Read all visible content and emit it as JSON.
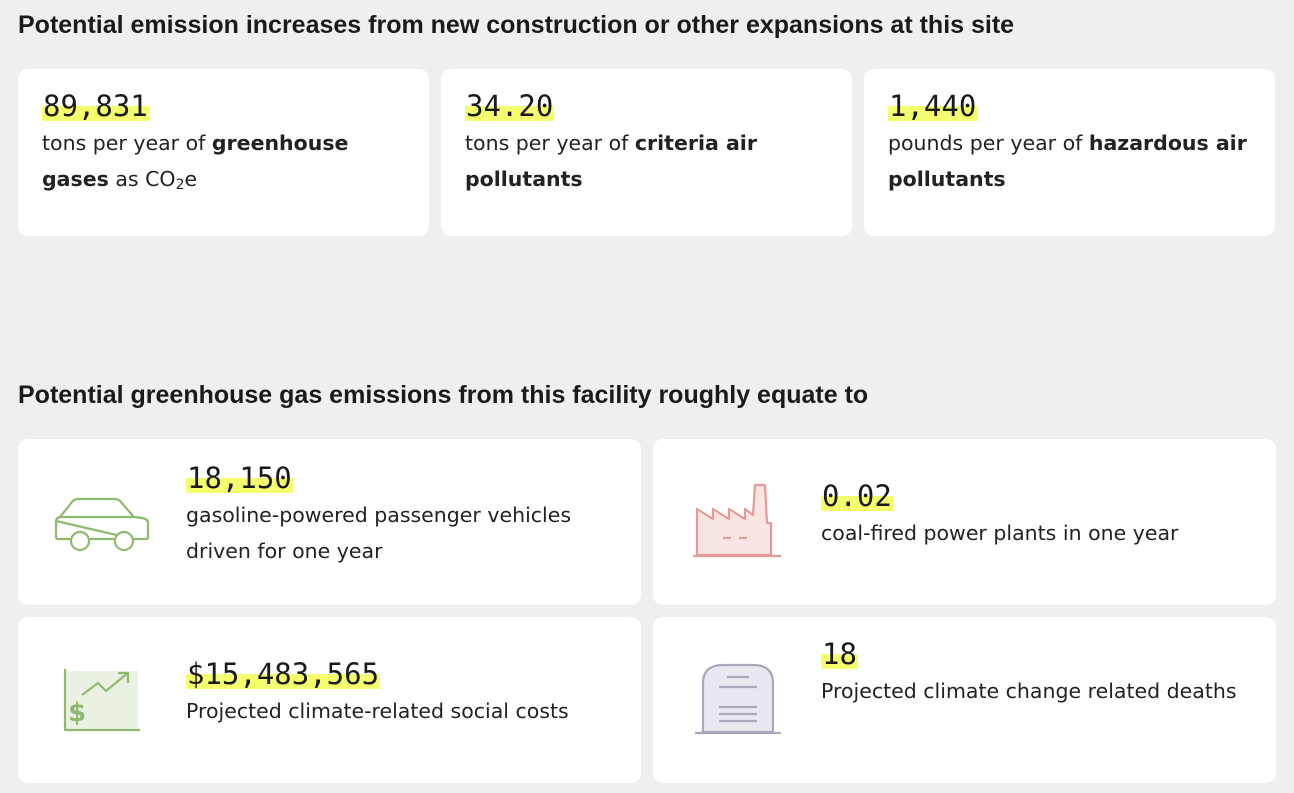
{
  "section1": {
    "title": "Potential emission increases from new construction or other expansions at this site",
    "cards": [
      {
        "value": "89,831",
        "pre": "tons per year of ",
        "bold": "greenhouse gases",
        "post_a": " as CO",
        "sub": "2",
        "post_b": "e"
      },
      {
        "value": "34.20",
        "pre": "tons per year of ",
        "bold": "criteria air pollutants"
      },
      {
        "value": "1,440",
        "pre": "pounds per year of ",
        "bold": "hazardous air pollutants"
      }
    ]
  },
  "section2": {
    "title": "Potential greenhouse gas emissions from this facility roughly equate to",
    "cards": [
      {
        "icon": "car-icon",
        "value": "18,150",
        "text": "gasoline-powered passenger vehicles driven for one year"
      },
      {
        "icon": "factory-icon",
        "value": "0.02",
        "text": "coal-fired power plants in one year"
      },
      {
        "icon": "chart-dollar-icon",
        "value": "$15,483,565",
        "text": "Projected climate-related social costs"
      },
      {
        "icon": "gravestone-icon",
        "value": "18",
        "text": "Projected climate change related deaths"
      }
    ]
  },
  "colors": {
    "highlight": "#f5ff6e",
    "car": "#8fba6e",
    "factory": "#e39a99",
    "chart": "#8fba6e",
    "gravestone": "#a8a8b8"
  }
}
